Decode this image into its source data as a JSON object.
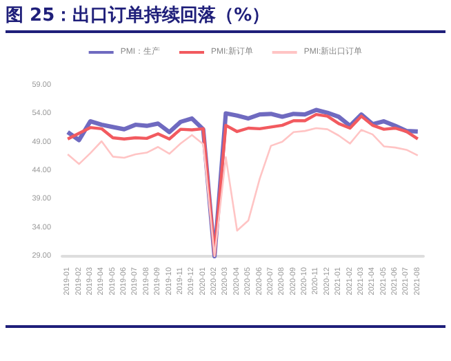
{
  "chart_data": {
    "type": "line",
    "title": "图 25：出口订单持续回落（%）",
    "categories": [
      "2019-01",
      "2019-02",
      "2019-03",
      "2019-04",
      "2019-05",
      "2019-06",
      "2019-07",
      "2019-08",
      "2019-09",
      "2019-10",
      "2019-11",
      "2019-12",
      "2020-01",
      "2020-02",
      "2020-03",
      "2020-04",
      "2020-05",
      "2020-06",
      "2020-07",
      "2020-08",
      "2020-09",
      "2020-10",
      "2020-11",
      "2020-12",
      "2021-01",
      "2021-02",
      "2021-03",
      "2021-04",
      "2021-05",
      "2021-06",
      "2021-07",
      "2021-08"
    ],
    "series": [
      {
        "name": "PMI：生产",
        "color": "#6f6ac0",
        "values": [
          50.8,
          49.4,
          52.7,
          52.1,
          51.7,
          51.3,
          52.1,
          51.9,
          52.3,
          50.8,
          52.6,
          53.2,
          51.3,
          29.0,
          54.1,
          53.7,
          53.2,
          53.9,
          54.0,
          53.5,
          54.0,
          53.9,
          54.7,
          54.2,
          53.5,
          51.9,
          53.9,
          52.2,
          52.7,
          51.9,
          51.0,
          50.9
        ]
      },
      {
        "name": "PMI:新订单",
        "color": "#f25a5f",
        "values": [
          49.6,
          50.6,
          51.6,
          51.4,
          49.8,
          49.6,
          49.8,
          49.7,
          50.5,
          49.6,
          51.3,
          51.2,
          51.4,
          29.3,
          52.0,
          50.9,
          51.5,
          51.4,
          51.7,
          52.0,
          52.8,
          52.8,
          53.9,
          53.6,
          52.3,
          51.5,
          53.6,
          52.0,
          51.3,
          51.5,
          50.9,
          49.6
        ]
      },
      {
        "name": "PMI:新出口订单",
        "color": "#ffc4c4",
        "values": [
          46.9,
          45.2,
          47.1,
          49.2,
          46.5,
          46.3,
          46.9,
          47.2,
          48.2,
          47.0,
          48.8,
          50.3,
          48.7,
          29.0,
          46.4,
          33.5,
          35.3,
          42.6,
          48.4,
          49.1,
          50.8,
          51.0,
          51.5,
          51.3,
          50.2,
          48.8,
          51.2,
          50.4,
          48.3,
          48.1,
          47.7,
          46.7
        ]
      }
    ],
    "ylim": [
      29,
      59
    ],
    "yticks": [
      {
        "value": 29,
        "label": "29.00"
      },
      {
        "value": 34,
        "label": "34.00"
      },
      {
        "value": 39,
        "label": "39.00"
      },
      {
        "value": 44,
        "label": "44.00"
      },
      {
        "value": 49,
        "label": "49.00"
      },
      {
        "value": 54,
        "label": "54.00"
      },
      {
        "value": 59,
        "label": "59.00"
      }
    ],
    "grid": false,
    "legend": "top",
    "marker": "none",
    "line_style": "solid"
  }
}
